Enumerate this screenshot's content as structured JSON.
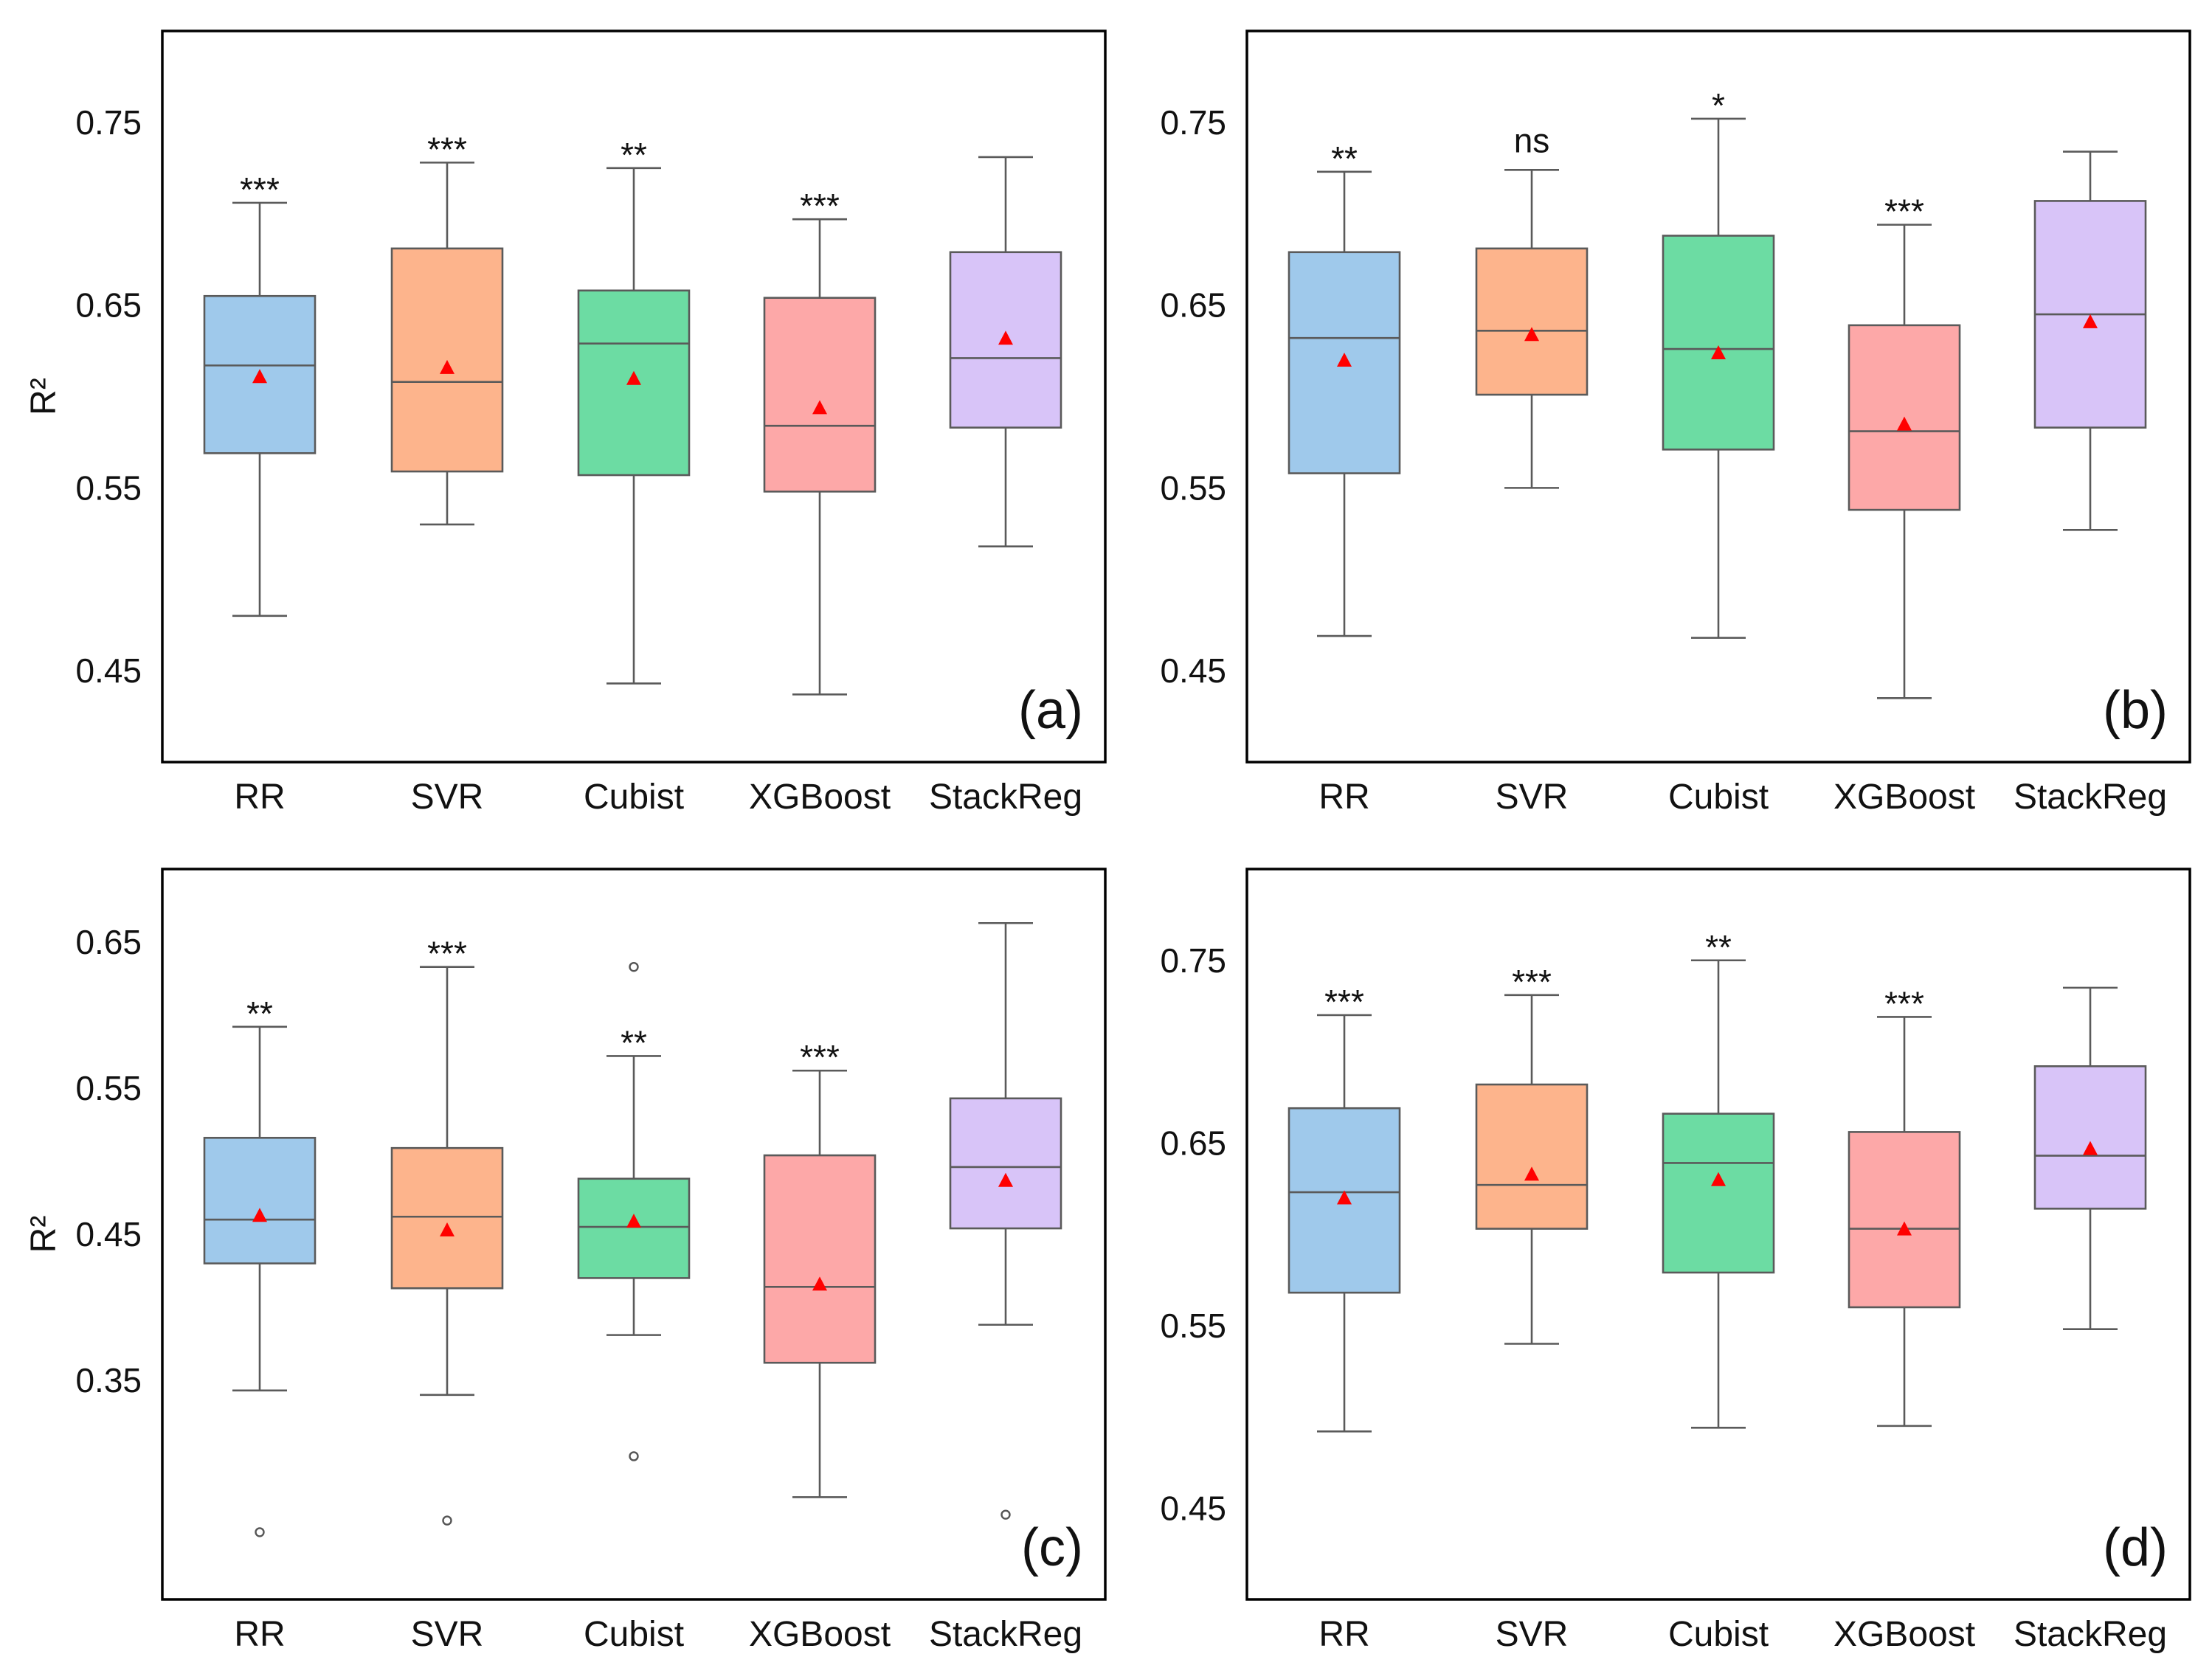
{
  "chart_data": [
    {
      "panel": "(a)",
      "type": "box",
      "ylabel": "R²",
      "ylim": [
        0.4,
        0.8
      ],
      "yticks": [
        "0.45",
        "0.55",
        "0.65",
        "0.75"
      ],
      "categories": [
        "RR",
        "SVR",
        "Cubist",
        "XGBoost",
        "StackReg"
      ],
      "colors": [
        "#9fc9eb",
        "#fdb48c",
        "#6cdca3",
        "#fda8a8",
        "#d8c4f8"
      ],
      "boxes": [
        {
          "min": 0.48,
          "q1": 0.569,
          "median": 0.617,
          "q3": 0.655,
          "max": 0.706,
          "mean": 0.611,
          "sig": "***",
          "outliers": []
        },
        {
          "min": 0.53,
          "q1": 0.559,
          "median": 0.608,
          "q3": 0.681,
          "max": 0.728,
          "mean": 0.616,
          "sig": "***",
          "outliers": []
        },
        {
          "min": 0.443,
          "q1": 0.557,
          "median": 0.629,
          "q3": 0.658,
          "max": 0.725,
          "mean": 0.61,
          "sig": "**",
          "outliers": []
        },
        {
          "min": 0.437,
          "q1": 0.548,
          "median": 0.584,
          "q3": 0.654,
          "max": 0.697,
          "mean": 0.594,
          "sig": "***",
          "outliers": []
        },
        {
          "min": 0.518,
          "q1": 0.583,
          "median": 0.621,
          "q3": 0.679,
          "max": 0.731,
          "mean": 0.632,
          "sig": "",
          "outliers": []
        }
      ]
    },
    {
      "panel": "(b)",
      "type": "box",
      "ylabel": "",
      "ylim": [
        0.4,
        0.8
      ],
      "yticks": [
        "0.45",
        "0.55",
        "0.65",
        "0.75"
      ],
      "categories": [
        "RR",
        "SVR",
        "Cubist",
        "XGBoost",
        "StackReg"
      ],
      "colors": [
        "#9fc9eb",
        "#fdb48c",
        "#6cdca3",
        "#fda8a8",
        "#d8c4f8"
      ],
      "boxes": [
        {
          "min": 0.469,
          "q1": 0.558,
          "median": 0.632,
          "q3": 0.679,
          "max": 0.723,
          "mean": 0.62,
          "sig": "**",
          "outliers": []
        },
        {
          "min": 0.55,
          "q1": 0.601,
          "median": 0.636,
          "q3": 0.681,
          "max": 0.724,
          "mean": 0.634,
          "sig": "ns",
          "outliers": []
        },
        {
          "min": 0.468,
          "q1": 0.571,
          "median": 0.626,
          "q3": 0.688,
          "max": 0.752,
          "mean": 0.624,
          "sig": "*",
          "outliers": []
        },
        {
          "min": 0.435,
          "q1": 0.538,
          "median": 0.581,
          "q3": 0.639,
          "max": 0.694,
          "mean": 0.585,
          "sig": "***",
          "outliers": []
        },
        {
          "min": 0.527,
          "q1": 0.583,
          "median": 0.645,
          "q3": 0.707,
          "max": 0.734,
          "mean": 0.641,
          "sig": "",
          "outliers": []
        }
      ]
    },
    {
      "panel": "(c)",
      "type": "box",
      "ylabel": "R²",
      "ylim": [
        0.2,
        0.7
      ],
      "yticks": [
        "0.35",
        "0.45",
        "0.55",
        "0.65"
      ],
      "categories": [
        "RR",
        "SVR",
        "Cubist",
        "XGBoost",
        "StackReg"
      ],
      "colors": [
        "#9fc9eb",
        "#fdb48c",
        "#6cdca3",
        "#fda8a8",
        "#d8c4f8"
      ],
      "boxes": [
        {
          "min": 0.343,
          "q1": 0.43,
          "median": 0.46,
          "q3": 0.516,
          "max": 0.592,
          "mean": 0.463,
          "sig": "**",
          "outliers": [
            0.246
          ]
        },
        {
          "min": 0.34,
          "q1": 0.413,
          "median": 0.462,
          "q3": 0.509,
          "max": 0.633,
          "mean": 0.453,
          "sig": "***",
          "outliers": [
            0.254
          ]
        },
        {
          "min": 0.381,
          "q1": 0.42,
          "median": 0.455,
          "q3": 0.488,
          "max": 0.572,
          "mean": 0.459,
          "sig": "**",
          "outliers": [
            0.633,
            0.298
          ]
        },
        {
          "min": 0.27,
          "q1": 0.362,
          "median": 0.414,
          "q3": 0.504,
          "max": 0.562,
          "mean": 0.416,
          "sig": "***",
          "outliers": []
        },
        {
          "min": 0.388,
          "q1": 0.454,
          "median": 0.496,
          "q3": 0.543,
          "max": 0.663,
          "mean": 0.487,
          "sig": "",
          "outliers": [
            0.258
          ]
        }
      ]
    },
    {
      "panel": "(d)",
      "type": "box",
      "ylabel": "",
      "ylim": [
        0.4,
        0.8
      ],
      "yticks": [
        "0.45",
        "0.55",
        "0.65",
        "0.75"
      ],
      "categories": [
        "RR",
        "SVR",
        "Cubist",
        "XGBoost",
        "StackReg"
      ],
      "colors": [
        "#9fc9eb",
        "#fdb48c",
        "#6cdca3",
        "#fda8a8",
        "#d8c4f8"
      ],
      "boxes": [
        {
          "min": 0.492,
          "q1": 0.568,
          "median": 0.623,
          "q3": 0.669,
          "max": 0.72,
          "mean": 0.62,
          "sig": "***",
          "outliers": []
        },
        {
          "min": 0.54,
          "q1": 0.603,
          "median": 0.627,
          "q3": 0.682,
          "max": 0.731,
          "mean": 0.633,
          "sig": "***",
          "outliers": []
        },
        {
          "min": 0.494,
          "q1": 0.579,
          "median": 0.639,
          "q3": 0.666,
          "max": 0.75,
          "mean": 0.63,
          "sig": "**",
          "outliers": []
        },
        {
          "min": 0.495,
          "q1": 0.56,
          "median": 0.603,
          "q3": 0.656,
          "max": 0.719,
          "mean": 0.603,
          "sig": "***",
          "outliers": []
        },
        {
          "min": 0.548,
          "q1": 0.614,
          "median": 0.643,
          "q3": 0.692,
          "max": 0.735,
          "mean": 0.647,
          "sig": "",
          "outliers": []
        }
      ]
    }
  ]
}
